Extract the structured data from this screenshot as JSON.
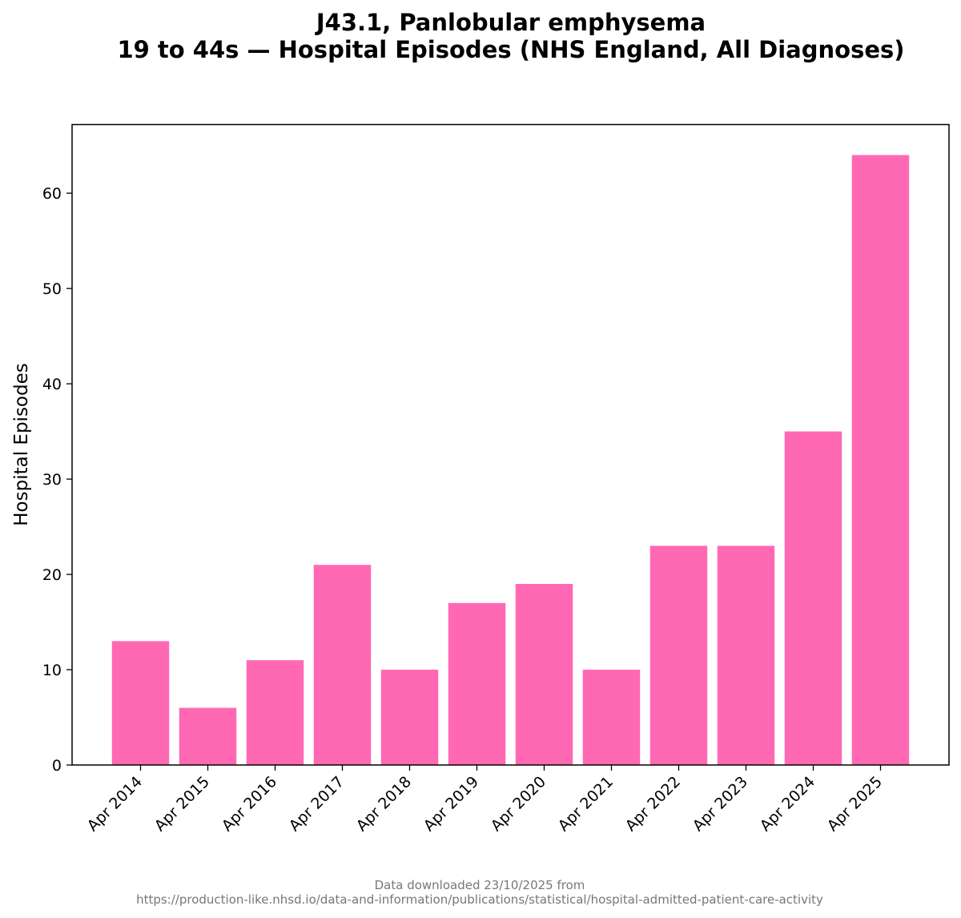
{
  "chart_data": {
    "type": "bar",
    "title_line1": "J43.1, Panlobular emphysema",
    "title_line2": "19 to 44s — Hospital Episodes (NHS England, All Diagnoses)",
    "xlabel": "",
    "ylabel": "Hospital Episodes",
    "categories": [
      "Apr 2014",
      "Apr 2015",
      "Apr 2016",
      "Apr 2017",
      "Apr 2018",
      "Apr 2019",
      "Apr 2020",
      "Apr 2021",
      "Apr 2022",
      "Apr 2023",
      "Apr 2024",
      "Apr 2025"
    ],
    "values": [
      13,
      6,
      11,
      21,
      10,
      17,
      19,
      10,
      23,
      23,
      35,
      64
    ],
    "ylim": [
      0,
      67.2
    ],
    "yticks": [
      0,
      10,
      20,
      30,
      40,
      50,
      60
    ],
    "grid": false,
    "bar_color": "#ff69b4"
  },
  "footer": {
    "line1": "Data downloaded 23/10/2025 from",
    "line2": "https://production-like.nhsd.io/data-and-information/publications/statistical/hospital-admitted-patient-care-activity"
  }
}
